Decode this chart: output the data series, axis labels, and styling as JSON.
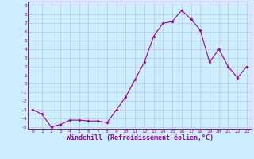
{
  "xlabel": "Windchill (Refroidissement éolien,°C)",
  "x": [
    0,
    1,
    2,
    3,
    4,
    5,
    6,
    7,
    8,
    9,
    10,
    11,
    12,
    13,
    14,
    15,
    16,
    17,
    18,
    19,
    20,
    21,
    22,
    23
  ],
  "y": [
    -3.0,
    -3.5,
    -5.0,
    -4.7,
    -4.2,
    -4.2,
    -4.3,
    -4.3,
    -4.5,
    -3.0,
    -1.5,
    0.5,
    2.5,
    5.5,
    7.0,
    7.2,
    8.5,
    7.5,
    6.2,
    2.5,
    4.0,
    2.0,
    0.7,
    2.0
  ],
  "line_color": "#990099",
  "marker": "D",
  "marker_size": 1.8,
  "marker_lw": 0.2,
  "line_width": 0.8,
  "bg_color": "#cceeff",
  "grid_color": "#bbbbdd",
  "ylim": [
    -5.2,
    9.5
  ],
  "xlim": [
    -0.5,
    23.5
  ],
  "yticks": [
    -5,
    -4,
    -3,
    -2,
    -1,
    0,
    1,
    2,
    3,
    4,
    5,
    6,
    7,
    8,
    9
  ],
  "xticks": [
    0,
    1,
    2,
    3,
    4,
    5,
    6,
    7,
    8,
    9,
    10,
    11,
    12,
    13,
    14,
    15,
    16,
    17,
    18,
    19,
    20,
    21,
    22,
    23
  ],
  "tick_fontsize": 4.5,
  "xlabel_fontsize": 6.0,
  "xlabel_fontweight": "bold",
  "spine_color": "#660066"
}
